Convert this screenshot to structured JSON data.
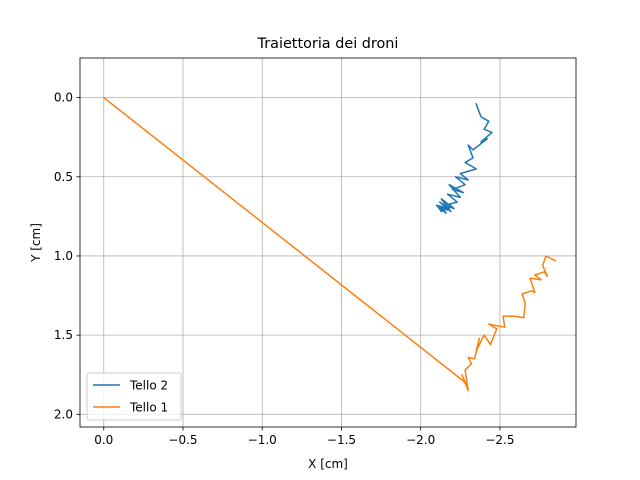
{
  "chart_data": {
    "type": "line",
    "title": "Traiettoria dei droni",
    "xlabel": "X [cm]",
    "ylabel": "Y [cm]",
    "xlim": [
      0.15,
      -2.98
    ],
    "ylim": [
      2.08,
      -0.25
    ],
    "x_inverted": true,
    "y_inverted": true,
    "grid": true,
    "legend_position": "lower left",
    "x_ticks": [
      0.0,
      -0.5,
      -1.0,
      -1.5,
      -2.0,
      -2.5
    ],
    "x_tick_labels": [
      "0.0",
      "−0.5",
      "−1.0",
      "−1.5",
      "−2.0",
      "−2.5"
    ],
    "y_ticks": [
      0.0,
      0.5,
      1.0,
      1.5,
      2.0
    ],
    "y_tick_labels": [
      "0.0",
      "0.5",
      "1.0",
      "1.5",
      "2.0"
    ],
    "series": [
      {
        "name": "Tello 2",
        "color": "#1f77b4",
        "x": [
          -2.35,
          -2.38,
          -2.43,
          -2.4,
          -2.45,
          -2.38,
          -2.42,
          -2.33,
          -2.3,
          -2.33,
          -2.28,
          -2.35,
          -2.25,
          -2.3,
          -2.22,
          -2.28,
          -2.2,
          -2.27,
          -2.18,
          -2.25,
          -2.17,
          -2.23,
          -2.15,
          -2.21,
          -2.13,
          -2.19,
          -2.12,
          -2.18,
          -2.1,
          -2.16,
          -2.14,
          -2.19,
          -2.13,
          -2.11,
          -2.17,
          -2.15
        ],
        "y": [
          0.04,
          0.12,
          0.15,
          0.2,
          0.22,
          0.28,
          0.26,
          0.33,
          0.3,
          0.38,
          0.41,
          0.45,
          0.48,
          0.52,
          0.5,
          0.55,
          0.58,
          0.6,
          0.55,
          0.63,
          0.61,
          0.66,
          0.68,
          0.7,
          0.64,
          0.72,
          0.66,
          0.7,
          0.68,
          0.73,
          0.7,
          0.68,
          0.72,
          0.69,
          0.71,
          0.66
        ]
      },
      {
        "name": "Tello 1",
        "color": "#ff7f0e",
        "x": [
          0.0,
          -2.27,
          -2.29,
          -2.26,
          -2.3,
          -2.28,
          -2.32,
          -2.3,
          -2.34,
          -2.37,
          -2.35,
          -2.4,
          -2.44,
          -2.48,
          -2.43,
          -2.53,
          -2.52,
          -2.59,
          -2.65,
          -2.66,
          -2.64,
          -2.7,
          -2.72,
          -2.69,
          -2.76,
          -2.72,
          -2.78,
          -2.8,
          -2.77,
          -2.79,
          -2.85
        ],
        "y": [
          0.0,
          1.79,
          1.82,
          1.75,
          1.85,
          1.72,
          1.68,
          1.64,
          1.65,
          1.52,
          1.6,
          1.5,
          1.56,
          1.46,
          1.43,
          1.45,
          1.38,
          1.38,
          1.39,
          1.3,
          1.24,
          1.22,
          1.23,
          1.14,
          1.15,
          1.12,
          1.1,
          1.13,
          1.06,
          1.0,
          1.03
        ]
      }
    ]
  }
}
